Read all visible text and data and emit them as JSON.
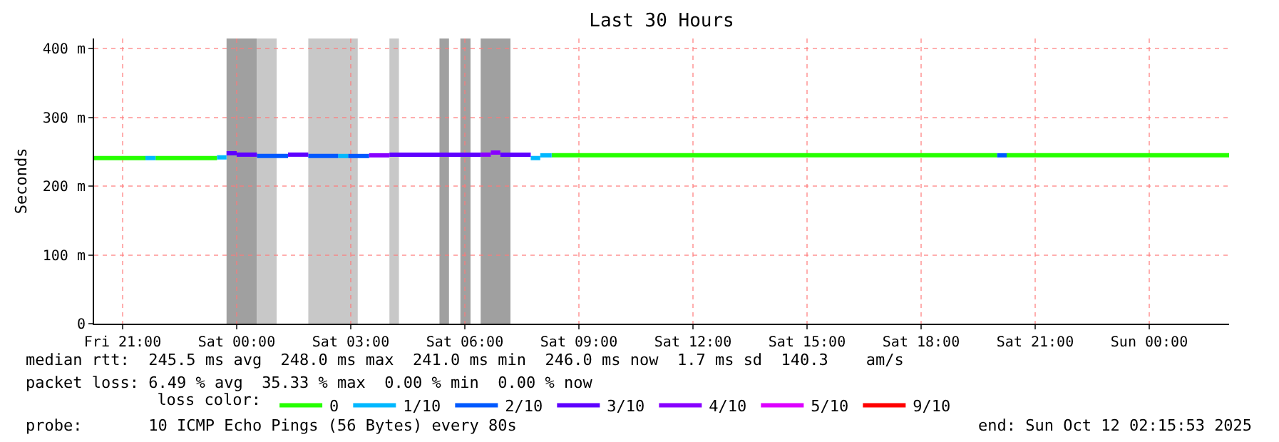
{
  "chart_data": {
    "type": "step",
    "title": "Last 30 Hours",
    "ylabel": "Seconds",
    "legend_title": "loss color:",
    "xlim": [
      "2025-10-10T20:15",
      "2025-10-12T02:06"
    ],
    "ylim": [
      0,
      415
    ],
    "xticks": [
      {
        "value": "2025-10-10T21:00",
        "label": "Fri 21:00"
      },
      {
        "value": "2025-10-11T00:00",
        "label": "Sat 00:00"
      },
      {
        "value": "2025-10-11T03:00",
        "label": "Sat 03:00"
      },
      {
        "value": "2025-10-11T06:00",
        "label": "Sat 06:00"
      },
      {
        "value": "2025-10-11T09:00",
        "label": "Sat 09:00"
      },
      {
        "value": "2025-10-11T12:00",
        "label": "Sat 12:00"
      },
      {
        "value": "2025-10-11T15:00",
        "label": "Sat 15:00"
      },
      {
        "value": "2025-10-11T18:00",
        "label": "Sat 18:00"
      },
      {
        "value": "2025-10-11T21:00",
        "label": "Sat 21:00"
      },
      {
        "value": "2025-10-12T00:00",
        "label": "Sun 00:00"
      }
    ],
    "yticks": [
      0,
      {
        "value": 100,
        "label": "100 m"
      },
      {
        "value": 200,
        "label": "200 m"
      },
      {
        "value": 300,
        "label": "300 m"
      },
      {
        "value": 400,
        "label": "400 m"
      }
    ],
    "grid": true,
    "legend": "bottom",
    "marker": "none",
    "series": [
      {
        "name": "0",
        "color": "#26ff00",
        "x": [
          "2025-10-10T20:15",
          "2025-10-10T21:36",
          null,
          "2025-10-10T21:52",
          "2025-10-10T23:29",
          null,
          "2025-10-11T08:17",
          "2025-10-11T20:00",
          null,
          "2025-10-11T20:15",
          "2025-10-12T02:06"
        ],
        "values": [
          241,
          241,
          null,
          241,
          241,
          null,
          245,
          245,
          null,
          245,
          245
        ]
      },
      {
        "name": "1/10",
        "color": "#00b8ff",
        "x": [
          "2025-10-10T21:36",
          "2025-10-10T21:52",
          null,
          "2025-10-10T23:29",
          "2025-10-10T23:44",
          null,
          "2025-10-11T02:40",
          "2025-10-11T02:56",
          null,
          "2025-10-11T07:44",
          "2025-10-11T07:59",
          null,
          "2025-10-11T07:59",
          "2025-10-11T08:17"
        ],
        "values": [
          241,
          241,
          null,
          242,
          242,
          null,
          244,
          244,
          null,
          241,
          241,
          null,
          245,
          245
        ]
      },
      {
        "name": "2/10",
        "color": "#0059ff",
        "x": [
          "2025-10-11T00:32",
          "2025-10-11T01:21",
          null,
          "2025-10-11T01:53",
          "2025-10-11T02:40",
          null,
          "2025-10-11T02:56",
          "2025-10-11T03:29",
          null,
          "2025-10-11T20:00",
          "2025-10-11T20:15"
        ],
        "values": [
          244,
          244,
          null,
          244,
          244,
          null,
          244,
          244,
          null,
          245,
          245
        ]
      },
      {
        "name": "3/10",
        "color": "#5e00ff",
        "x": [
          "2025-10-10T23:44",
          "2025-10-11T00:00",
          null,
          "2025-10-11T00:00",
          "2025-10-11T00:32",
          null,
          "2025-10-11T01:21",
          "2025-10-11T01:53",
          null,
          "2025-10-11T04:01",
          "2025-10-11T06:25",
          null,
          "2025-10-11T06:56",
          "2025-10-11T07:44"
        ],
        "values": [
          248,
          248,
          null,
          246,
          246,
          null,
          246,
          246,
          null,
          246,
          246,
          null,
          246,
          246
        ]
      },
      {
        "name": "4/10",
        "color": "#8800ff",
        "x": [
          "2025-10-11T03:29",
          "2025-10-11T04:01",
          null,
          "2025-10-11T06:25",
          "2025-10-11T06:41",
          null,
          "2025-10-11T06:41",
          "2025-10-11T06:56"
        ],
        "values": [
          245,
          245,
          null,
          246,
          246,
          null,
          249,
          249
        ]
      },
      {
        "name": "5/10",
        "color": "#dd00ff"
      },
      {
        "name": "9/10",
        "color": "#ff0000"
      }
    ],
    "bands": [
      {
        "axis": "x",
        "from": "2025-10-10T23:44",
        "to": "2025-10-11T00:32",
        "color": "#a0a0a0"
      },
      {
        "axis": "x",
        "from": "2025-10-11T00:32",
        "to": "2025-10-11T01:03",
        "color": "#c8c8c8"
      },
      {
        "axis": "x",
        "from": "2025-10-11T01:53",
        "to": "2025-10-11T03:11",
        "color": "#c8c8c8"
      },
      {
        "axis": "x",
        "from": "2025-10-11T04:01",
        "to": "2025-10-11T04:16",
        "color": "#c8c8c8"
      },
      {
        "axis": "x",
        "from": "2025-10-11T05:20",
        "to": "2025-10-11T05:35",
        "color": "#a0a0a0"
      },
      {
        "axis": "x",
        "from": "2025-10-11T05:53",
        "to": "2025-10-11T06:09",
        "color": "#a0a0a0"
      },
      {
        "axis": "x",
        "from": "2025-10-11T06:25",
        "to": "2025-10-11T07:12",
        "color": "#a0a0a0"
      }
    ],
    "annotations": [
      "median rtt:  245.5 ms avg  248.0 ms max  241.0 ms min  246.0 ms now  1.7 ms sd  140.3    am/s",
      "packet loss: 6.49 % avg  35.33 % max  0.00 % min  0.00 % now",
      "probe:       10 ICMP Echo Pings (56 Bytes) every 80s",
      "end: Sun Oct 12 02:15:53 2025"
    ]
  }
}
